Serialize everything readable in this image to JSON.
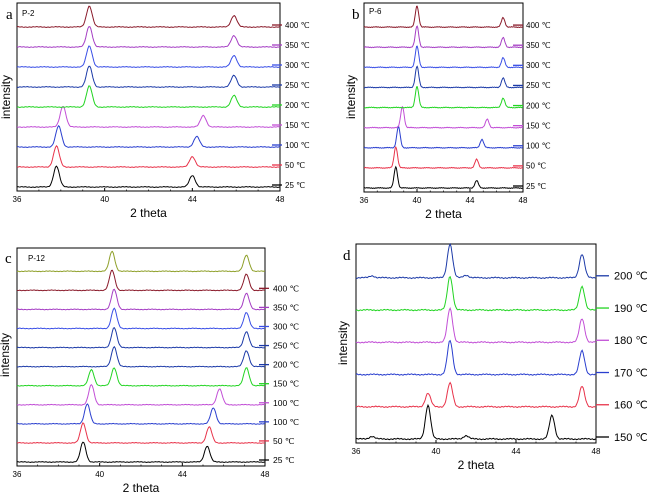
{
  "figure": {
    "panels": [
      {
        "letter": "a",
        "tag": "P-2"
      },
      {
        "letter": "b",
        "tag": "P-6"
      },
      {
        "letter": "c",
        "tag": "P-12"
      },
      {
        "letter": "d",
        "tag": ""
      }
    ]
  },
  "chart_data": [
    {
      "type": "line",
      "panel": "a",
      "title": "P-2",
      "xlabel": "2 theta",
      "ylabel": "intensity",
      "xlim": [
        36,
        48
      ],
      "xticks": [
        "36",
        "40",
        "44",
        "48"
      ],
      "legend_placement": "right",
      "series": [
        {
          "name": "25 ℃",
          "color": "#000000",
          "peaks": [
            [
              37.8,
              1.0
            ],
            [
              44.0,
              0.55
            ]
          ]
        },
        {
          "name": "50 ℃",
          "color": "#e8334a",
          "peaks": [
            [
              37.8,
              1.0
            ],
            [
              44.0,
              0.5
            ]
          ]
        },
        {
          "name": "100 ℃",
          "color": "#2a3fcf",
          "peaks": [
            [
              37.9,
              1.0
            ],
            [
              44.2,
              0.5
            ]
          ]
        },
        {
          "name": "150 ℃",
          "color": "#c24fd6",
          "peaks": [
            [
              38.1,
              1.0
            ],
            [
              44.5,
              0.55
            ]
          ]
        },
        {
          "name": "200 ℃",
          "color": "#22d422",
          "peaks": [
            [
              39.3,
              1.0
            ],
            [
              45.9,
              0.55
            ]
          ]
        },
        {
          "name": "250 ℃",
          "color": "#1c3aa8",
          "peaks": [
            [
              39.3,
              1.0
            ],
            [
              45.9,
              0.55
            ]
          ]
        },
        {
          "name": "300 ℃",
          "color": "#3a4fe6",
          "peaks": [
            [
              39.3,
              1.0
            ],
            [
              45.9,
              0.55
            ]
          ]
        },
        {
          "name": "350 ℃",
          "color": "#a53ec4",
          "peaks": [
            [
              39.3,
              1.0
            ],
            [
              45.9,
              0.55
            ]
          ]
        },
        {
          "name": "400 ℃",
          "color": "#8a1a2a",
          "peaks": [
            [
              39.3,
              1.0
            ],
            [
              45.9,
              0.55
            ]
          ]
        }
      ]
    },
    {
      "type": "line",
      "panel": "b",
      "title": "P-6",
      "xlabel": "2 theta",
      "ylabel": "intensity",
      "xlim": [
        36,
        48
      ],
      "xticks": [
        "36",
        "40",
        "44",
        "48"
      ],
      "legend_placement": "right",
      "series": [
        {
          "name": "25 ℃",
          "color": "#000000",
          "peaks": [
            [
              38.4,
              1.0
            ],
            [
              44.5,
              0.35
            ]
          ]
        },
        {
          "name": "50 ℃",
          "color": "#e8334a",
          "peaks": [
            [
              38.4,
              1.0
            ],
            [
              44.5,
              0.4
            ]
          ]
        },
        {
          "name": "100 ℃",
          "color": "#2a3fcf",
          "peaks": [
            [
              38.6,
              1.0
            ],
            [
              44.9,
              0.4
            ]
          ]
        },
        {
          "name": "150 ℃",
          "color": "#c24fd6",
          "peaks": [
            [
              38.9,
              1.0
            ],
            [
              45.3,
              0.4
            ]
          ]
        },
        {
          "name": "200 ℃",
          "color": "#22d422",
          "peaks": [
            [
              40.0,
              1.0
            ],
            [
              46.5,
              0.45
            ]
          ]
        },
        {
          "name": "250 ℃",
          "color": "#1c3aa8",
          "peaks": [
            [
              40.0,
              1.0
            ],
            [
              46.5,
              0.45
            ]
          ]
        },
        {
          "name": "300 ℃",
          "color": "#3a4fe6",
          "peaks": [
            [
              40.0,
              1.0
            ],
            [
              46.5,
              0.45
            ]
          ]
        },
        {
          "name": "350 ℃",
          "color": "#a53ec4",
          "peaks": [
            [
              40.0,
              1.0
            ],
            [
              46.5,
              0.45
            ]
          ]
        },
        {
          "name": "400 ℃",
          "color": "#8a1a2a",
          "peaks": [
            [
              40.0,
              1.0
            ],
            [
              46.5,
              0.45
            ]
          ]
        }
      ]
    },
    {
      "type": "line",
      "panel": "c",
      "title": "P-12",
      "xlabel": "2 theta",
      "ylabel": "intensity",
      "xlim": [
        36,
        48
      ],
      "xticks": [
        "36",
        "40",
        "44",
        "48"
      ],
      "legend_placement": "right",
      "series": [
        {
          "name": "25 ℃",
          "color": "#000000",
          "peaks": [
            [
              39.2,
              1.0
            ],
            [
              45.2,
              0.8
            ]
          ]
        },
        {
          "name": "50 ℃",
          "color": "#e8334a",
          "peaks": [
            [
              39.2,
              1.0
            ],
            [
              45.3,
              0.8
            ]
          ]
        },
        {
          "name": "100 ℃",
          "color": "#2a3fcf",
          "peaks": [
            [
              39.4,
              1.0
            ],
            [
              45.5,
              0.8
            ]
          ]
        },
        {
          "name": "100 ℃",
          "color": "#c24fd6",
          "peaks": [
            [
              39.6,
              1.0
            ],
            [
              45.8,
              0.8
            ]
          ]
        },
        {
          "name": "150 ℃",
          "color": "#22d422",
          "peaks": [
            [
              39.6,
              0.8
            ],
            [
              40.7,
              0.9
            ],
            [
              47.1,
              0.9
            ]
          ]
        },
        {
          "name": "200 ℃",
          "color": "#1c3aa8",
          "peaks": [
            [
              40.7,
              1.0
            ],
            [
              47.1,
              0.8
            ]
          ]
        },
        {
          "name": "250 ℃",
          "color": "#1c3aa8",
          "peaks": [
            [
              40.7,
              1.0
            ],
            [
              47.1,
              0.8
            ]
          ]
        },
        {
          "name": "300 ℃",
          "color": "#3a4fe6",
          "peaks": [
            [
              40.7,
              1.0
            ],
            [
              47.1,
              0.8
            ]
          ]
        },
        {
          "name": "350 ℃",
          "color": "#a53ec4",
          "peaks": [
            [
              40.7,
              1.0
            ],
            [
              47.1,
              0.8
            ]
          ]
        },
        {
          "name": "400 ℃",
          "color": "#8a1a2a",
          "peaks": [
            [
              40.6,
              1.0
            ],
            [
              47.1,
              0.8
            ]
          ]
        },
        {
          "name": "",
          "color": "#8fa02a",
          "peaks": [
            [
              40.6,
              1.0
            ],
            [
              47.1,
              0.8
            ]
          ]
        }
      ]
    },
    {
      "type": "line",
      "panel": "d",
      "title": "",
      "xlabel": "2 theta",
      "ylabel": "intensity",
      "xlim": [
        36,
        48
      ],
      "xticks": [
        "36",
        "40",
        "44",
        "48"
      ],
      "legend_placement": "right",
      "series": [
        {
          "name": "150 ℃",
          "color": "#000000",
          "peaks": [
            [
              39.6,
              1.0
            ],
            [
              45.8,
              0.7
            ],
            [
              41.5,
              0.1
            ],
            [
              36.8,
              0.08
            ]
          ]
        },
        {
          "name": "160 ℃",
          "color": "#e8334a",
          "peaks": [
            [
              39.6,
              0.4
            ],
            [
              40.7,
              0.7
            ],
            [
              47.3,
              0.6
            ]
          ]
        },
        {
          "name": "170 ℃",
          "color": "#2a3fcf",
          "peaks": [
            [
              40.7,
              1.0
            ],
            [
              47.3,
              0.7
            ]
          ]
        },
        {
          "name": "180 ℃",
          "color": "#c24fd6",
          "peaks": [
            [
              40.7,
              1.0
            ],
            [
              47.3,
              0.7
            ]
          ]
        },
        {
          "name": "190 ℃",
          "color": "#22d422",
          "peaks": [
            [
              40.7,
              1.0
            ],
            [
              47.3,
              0.7
            ]
          ]
        },
        {
          "name": "200 ℃",
          "color": "#1c3aa8",
          "peaks": [
            [
              40.7,
              1.0
            ],
            [
              47.3,
              0.7
            ],
            [
              36.8,
              0.06
            ],
            [
              41.5,
              0.08
            ]
          ]
        }
      ]
    }
  ]
}
